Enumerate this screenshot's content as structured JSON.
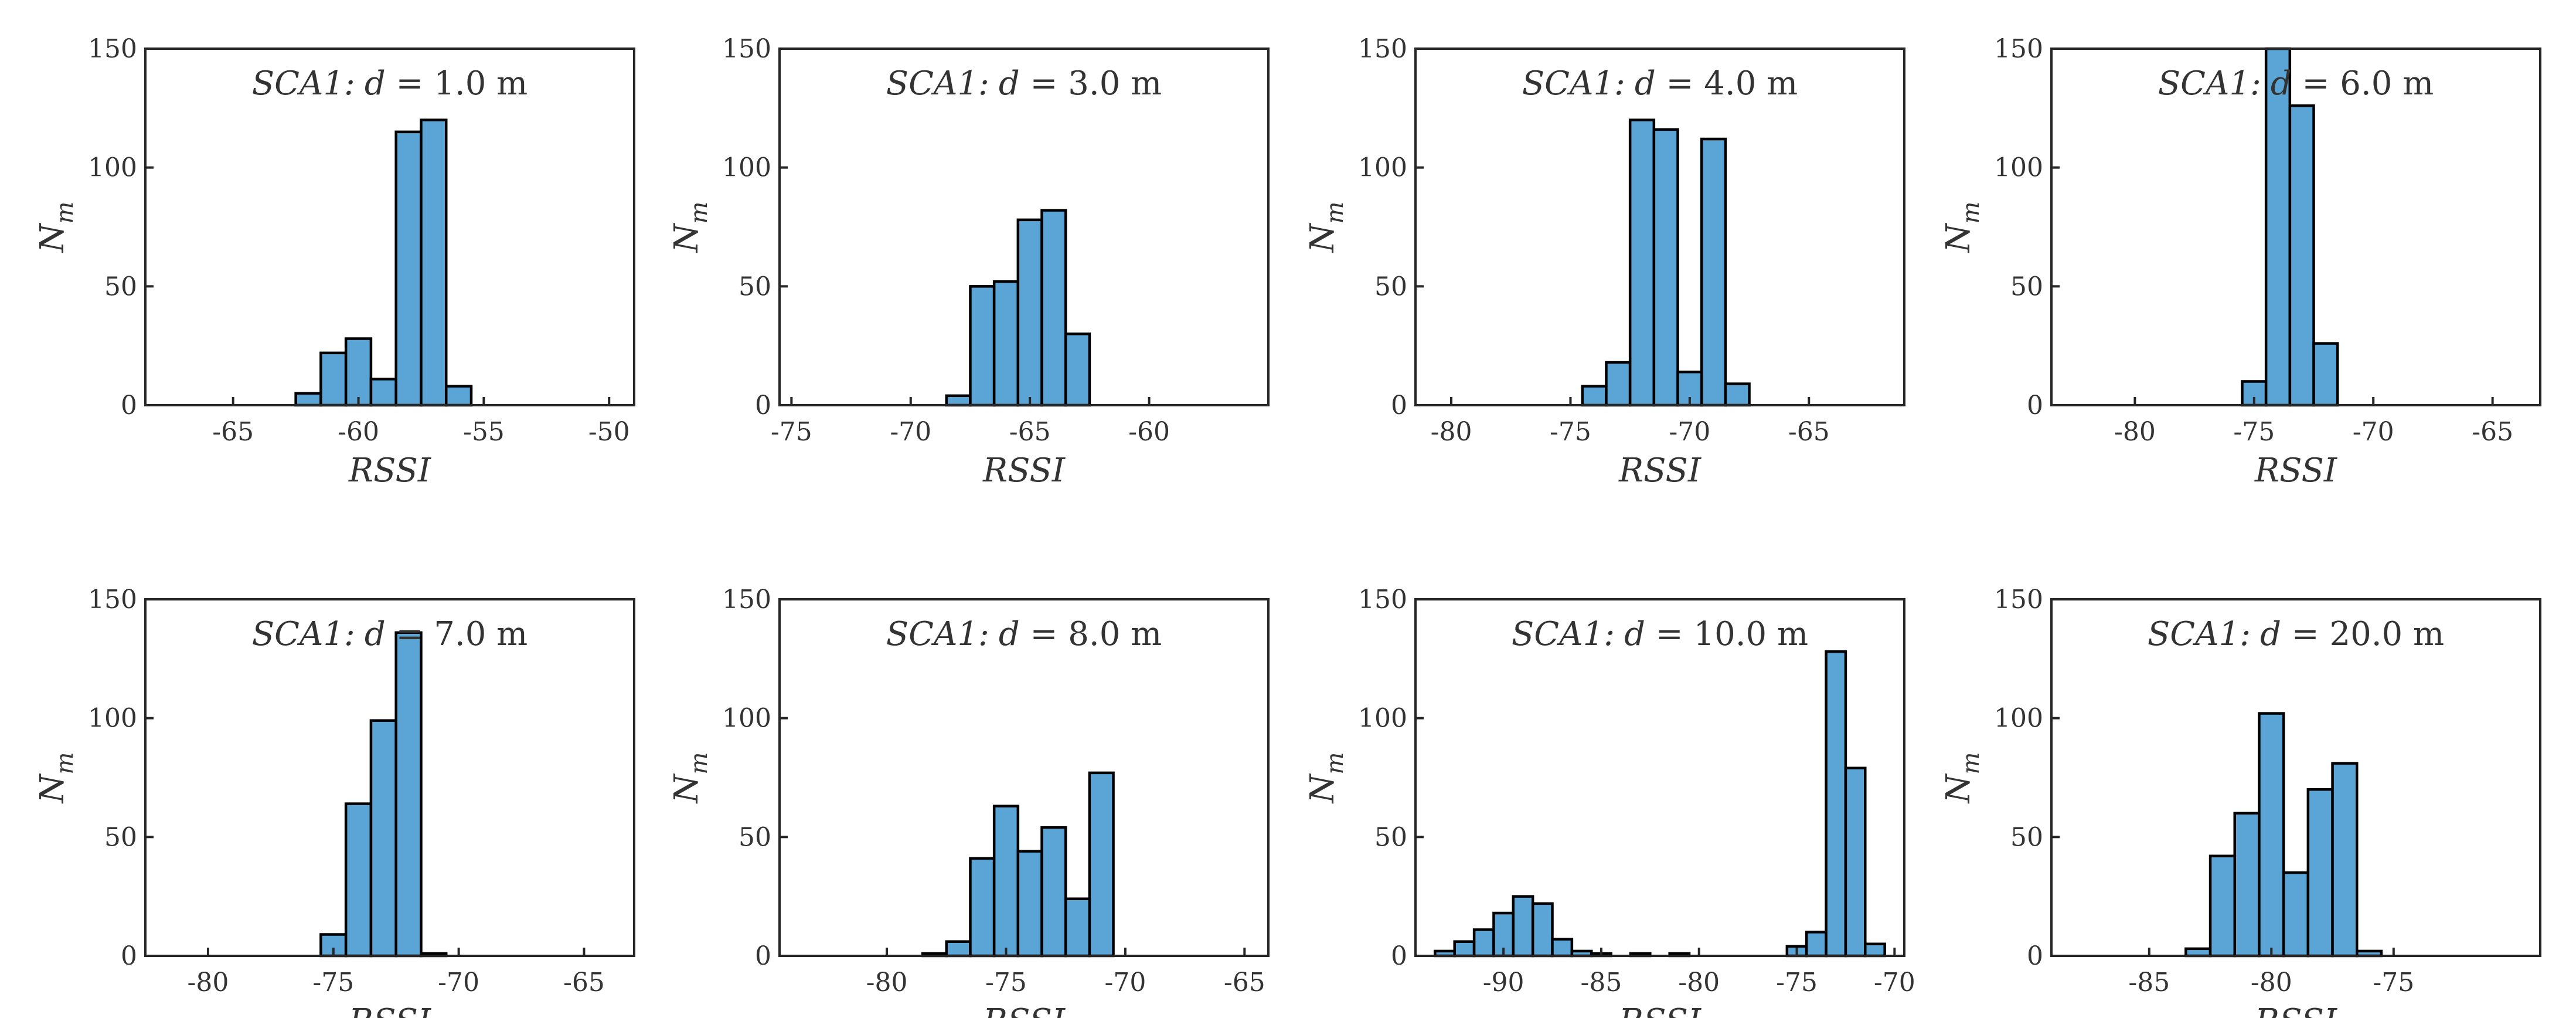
{
  "figure": {
    "background": "#ffffff",
    "bar_color": "#5aa5d6",
    "edge_color": "#000000"
  },
  "chart_data": [
    {
      "type": "bar",
      "title": {
        "prefix": "SCA1:",
        "variable": "d",
        "eq": " = ",
        "value": "1.0 m"
      },
      "xlabel": "RSSI",
      "ylabel": "N",
      "ylabel_sub": "m",
      "xlim": [
        -68.5,
        -49
      ],
      "ylim": [
        0,
        150
      ],
      "xticks": [
        -65,
        -60,
        -55,
        -50
      ],
      "xtick_labels": [
        "-65",
        "-60",
        "-55",
        "-50"
      ],
      "yticks": [
        0,
        50,
        100,
        150
      ],
      "ytick_labels": [
        "0",
        "50",
        "100",
        "150"
      ],
      "bin_width": 1,
      "bins": [
        {
          "x": -62,
          "count": 5
        },
        {
          "x": -61,
          "count": 22
        },
        {
          "x": -60,
          "count": 28
        },
        {
          "x": -59,
          "count": 11
        },
        {
          "x": -58,
          "count": 115
        },
        {
          "x": -57,
          "count": 120
        },
        {
          "x": -56,
          "count": 8
        }
      ]
    },
    {
      "type": "bar",
      "title": {
        "prefix": "SCA1:",
        "variable": "d",
        "eq": " = ",
        "value": "3.0 m"
      },
      "xlabel": "RSSI",
      "ylabel": "N",
      "ylabel_sub": "m",
      "xlim": [
        -75.5,
        -55
      ],
      "ylim": [
        0,
        150
      ],
      "xticks": [
        -75,
        -70,
        -65,
        -60
      ],
      "xtick_labels": [
        "-75",
        "-70",
        "-65",
        "-60"
      ],
      "yticks": [
        0,
        50,
        100,
        150
      ],
      "ytick_labels": [
        "0",
        "50",
        "100",
        "150"
      ],
      "bin_width": 1,
      "bins": [
        {
          "x": -68,
          "count": 4
        },
        {
          "x": -67,
          "count": 50
        },
        {
          "x": -66,
          "count": 52
        },
        {
          "x": -65,
          "count": 78
        },
        {
          "x": -64,
          "count": 82
        },
        {
          "x": -63,
          "count": 30
        }
      ]
    },
    {
      "type": "bar",
      "title": {
        "prefix": "SCA1:",
        "variable": "d",
        "eq": " = ",
        "value": "4.0 m"
      },
      "xlabel": "RSSI",
      "ylabel": "N",
      "ylabel_sub": "m",
      "xlim": [
        -81.5,
        -61
      ],
      "ylim": [
        0,
        150
      ],
      "xticks": [
        -80,
        -75,
        -70,
        -65
      ],
      "xtick_labels": [
        "-80",
        "-75",
        "-70",
        "-65"
      ],
      "yticks": [
        0,
        50,
        100,
        150
      ],
      "ytick_labels": [
        "0",
        "50",
        "100",
        "150"
      ],
      "bin_width": 1,
      "bins": [
        {
          "x": -74,
          "count": 8
        },
        {
          "x": -73,
          "count": 18
        },
        {
          "x": -72,
          "count": 120
        },
        {
          "x": -71,
          "count": 116
        },
        {
          "x": -70,
          "count": 14
        },
        {
          "x": -69,
          "count": 112
        },
        {
          "x": -68,
          "count": 9
        }
      ]
    },
    {
      "type": "bar",
      "title": {
        "prefix": "SCA1:",
        "variable": "d",
        "eq": " = ",
        "value": "6.0 m"
      },
      "xlabel": "RSSI",
      "ylabel": "N",
      "ylabel_sub": "m",
      "xlim": [
        -83.5,
        -63
      ],
      "ylim": [
        0,
        150
      ],
      "xticks": [
        -80,
        -75,
        -70,
        -65
      ],
      "xtick_labels": [
        "-80",
        "-75",
        "-70",
        "-65"
      ],
      "yticks": [
        0,
        50,
        100,
        150
      ],
      "ytick_labels": [
        "0",
        "50",
        "100",
        "150"
      ],
      "bin_width": 1,
      "bins": [
        {
          "x": -75,
          "count": 10
        },
        {
          "x": -74,
          "count": 150
        },
        {
          "x": -73,
          "count": 126
        },
        {
          "x": -72,
          "count": 26
        }
      ]
    },
    {
      "type": "bar",
      "title": {
        "prefix": "SCA1:",
        "variable": "d",
        "eq": " = ",
        "value": "7.0 m"
      },
      "xlabel": "RSSI",
      "ylabel": "N",
      "ylabel_sub": "m",
      "xlim": [
        -82.5,
        -63
      ],
      "ylim": [
        0,
        150
      ],
      "xticks": [
        -80,
        -75,
        -70,
        -65
      ],
      "xtick_labels": [
        "-80",
        "-75",
        "-70",
        "-65"
      ],
      "yticks": [
        0,
        50,
        100,
        150
      ],
      "ytick_labels": [
        "0",
        "50",
        "100",
        "150"
      ],
      "bin_width": 1,
      "bins": [
        {
          "x": -75,
          "count": 9
        },
        {
          "x": -74,
          "count": 64
        },
        {
          "x": -73,
          "count": 99
        },
        {
          "x": -72,
          "count": 136
        },
        {
          "x": -71,
          "count": 1
        }
      ]
    },
    {
      "type": "bar",
      "title": {
        "prefix": "SCA1:",
        "variable": "d",
        "eq": " = ",
        "value": "8.0 m"
      },
      "xlabel": "RSSI",
      "ylabel": "N",
      "ylabel_sub": "m",
      "xlim": [
        -84.5,
        -64
      ],
      "ylim": [
        0,
        150
      ],
      "xticks": [
        -80,
        -75,
        -70,
        -65
      ],
      "xtick_labels": [
        "-80",
        "-75",
        "-70",
        "-65"
      ],
      "yticks": [
        0,
        50,
        100,
        150
      ],
      "ytick_labels": [
        "0",
        "50",
        "100",
        "150"
      ],
      "bin_width": 1,
      "bins": [
        {
          "x": -78,
          "count": 1
        },
        {
          "x": -77,
          "count": 6
        },
        {
          "x": -76,
          "count": 41
        },
        {
          "x": -75,
          "count": 63
        },
        {
          "x": -74,
          "count": 44
        },
        {
          "x": -73,
          "count": 54
        },
        {
          "x": -72,
          "count": 24
        },
        {
          "x": -71,
          "count": 77
        }
      ]
    },
    {
      "type": "bar",
      "title": {
        "prefix": "SCA1:",
        "variable": "d",
        "eq": " = ",
        "value": "10.0 m"
      },
      "xlabel": "RSSI",
      "ylabel": "N",
      "ylabel_sub": "m",
      "xlim": [
        -94.5,
        -69.5
      ],
      "ylim": [
        0,
        150
      ],
      "xticks": [
        -90,
        -85,
        -80,
        -75,
        -70
      ],
      "xtick_labels": [
        "-90",
        "-85",
        "-80",
        "-75",
        "-70"
      ],
      "yticks": [
        0,
        50,
        100,
        150
      ],
      "ytick_labels": [
        "0",
        "50",
        "100",
        "150"
      ],
      "bin_width": 1,
      "bins": [
        {
          "x": -93,
          "count": 2
        },
        {
          "x": -92,
          "count": 6
        },
        {
          "x": -91,
          "count": 11
        },
        {
          "x": -90,
          "count": 18
        },
        {
          "x": -89,
          "count": 25
        },
        {
          "x": -88,
          "count": 22
        },
        {
          "x": -87,
          "count": 7
        },
        {
          "x": -86,
          "count": 2
        },
        {
          "x": -85,
          "count": 1
        },
        {
          "x": -83,
          "count": 1
        },
        {
          "x": -81,
          "count": 1
        },
        {
          "x": -75,
          "count": 4
        },
        {
          "x": -74,
          "count": 10
        },
        {
          "x": -73,
          "count": 128
        },
        {
          "x": -72,
          "count": 79
        },
        {
          "x": -71,
          "count": 5
        }
      ]
    },
    {
      "type": "bar",
      "title": {
        "prefix": "SCA1:",
        "variable": "d",
        "eq": " = ",
        "value": "20.0 m"
      },
      "xlabel": "RSSI",
      "ylabel": "N",
      "ylabel_sub": "m",
      "xlim": [
        -89,
        -69
      ],
      "ylim": [
        0,
        150
      ],
      "xticks": [
        -85,
        -80,
        -75
      ],
      "xtick_labels": [
        "-85",
        "-80",
        "-75"
      ],
      "yticks": [
        0,
        50,
        100,
        150
      ],
      "ytick_labels": [
        "0",
        "50",
        "100",
        "150"
      ],
      "bin_width": 1,
      "bins": [
        {
          "x": -83,
          "count": 3
        },
        {
          "x": -82,
          "count": 42
        },
        {
          "x": -81,
          "count": 60
        },
        {
          "x": -80,
          "count": 102
        },
        {
          "x": -79,
          "count": 35
        },
        {
          "x": -78,
          "count": 70
        },
        {
          "x": -77,
          "count": 81
        },
        {
          "x": -76,
          "count": 2
        }
      ]
    }
  ]
}
